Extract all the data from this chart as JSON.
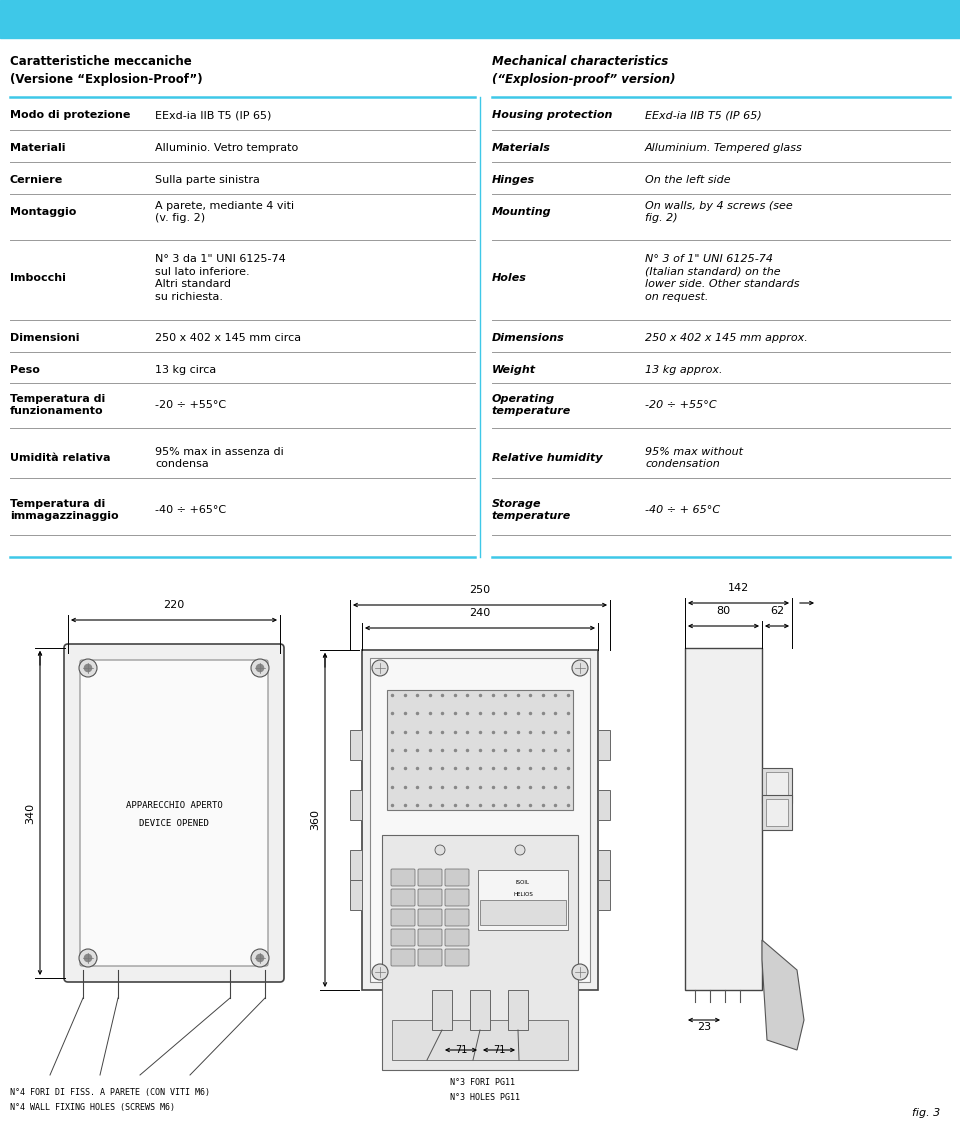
{
  "header_color": "#3EC8E8",
  "line_color": "#3EC8E8",
  "sep_color": "#999999",
  "bg_color": "#FFFFFF",
  "title_it": "Caratteristiche meccaniche\n(Versione “Explosion-Proof”)",
  "title_en": "Mechanical characteristics\n(“Explosion-proof” version)",
  "rows": [
    {
      "it_label": "Modo di protezione",
      "it_value": "EExd-ia IIB T5 (IP 65)",
      "en_label": "Housing protection",
      "en_value": "EExd-ia IIB T5 (IP 65)"
    },
    {
      "it_label": "Materiali",
      "it_value": "Alluminio. Vetro temprato",
      "en_label": "Materials",
      "en_value": "Alluminium. Tempered glass"
    },
    {
      "it_label": "Cerniere",
      "it_value": "Sulla parte sinistra",
      "en_label": "Hinges",
      "en_value": "On the left side"
    },
    {
      "it_label": "Montaggio",
      "it_value": "A parete, mediante 4 viti\n(v. fig. 2)",
      "en_label": "Mounting",
      "en_value": "On walls, by 4 screws (see\nfig. 2)"
    },
    {
      "it_label": "Imbocchi",
      "it_value": "N° 3 da 1\" UNI 6125-74\nsul lato inferiore.\nAltri standard\nsu richiesta.",
      "en_label": "Holes",
      "en_value": "N° 3 of 1\" UNI 6125-74\n(Italian standard) on the\nlower side. Other standards\non request."
    },
    {
      "it_label": "Dimensioni",
      "it_value": "250 x 402 x 145 mm circa",
      "en_label": "Dimensions",
      "en_value": "250 x 402 x 145 mm approx."
    },
    {
      "it_label": "Peso",
      "it_value": "13 kg circa",
      "en_label": "Weight",
      "en_value": "13 kg approx."
    },
    {
      "it_label": "Temperatura di\nfunzionamento",
      "it_value": "-20 ÷ +55°C",
      "en_label": "Operating\ntemperature",
      "en_value": "-20 ÷ +55°C"
    },
    {
      "it_label": "Umidità relativa",
      "it_value": "95% max in assenza di\ncondensa",
      "en_label": "Relative humidity",
      "en_value": "95% max without\ncondensation"
    },
    {
      "it_label": "Temperatura di\nimmagazzinaggio",
      "it_value": "-40 ÷ +65°C",
      "en_label": "Storage\ntemperature",
      "en_value": "-40 ÷ + 65°C"
    }
  ]
}
